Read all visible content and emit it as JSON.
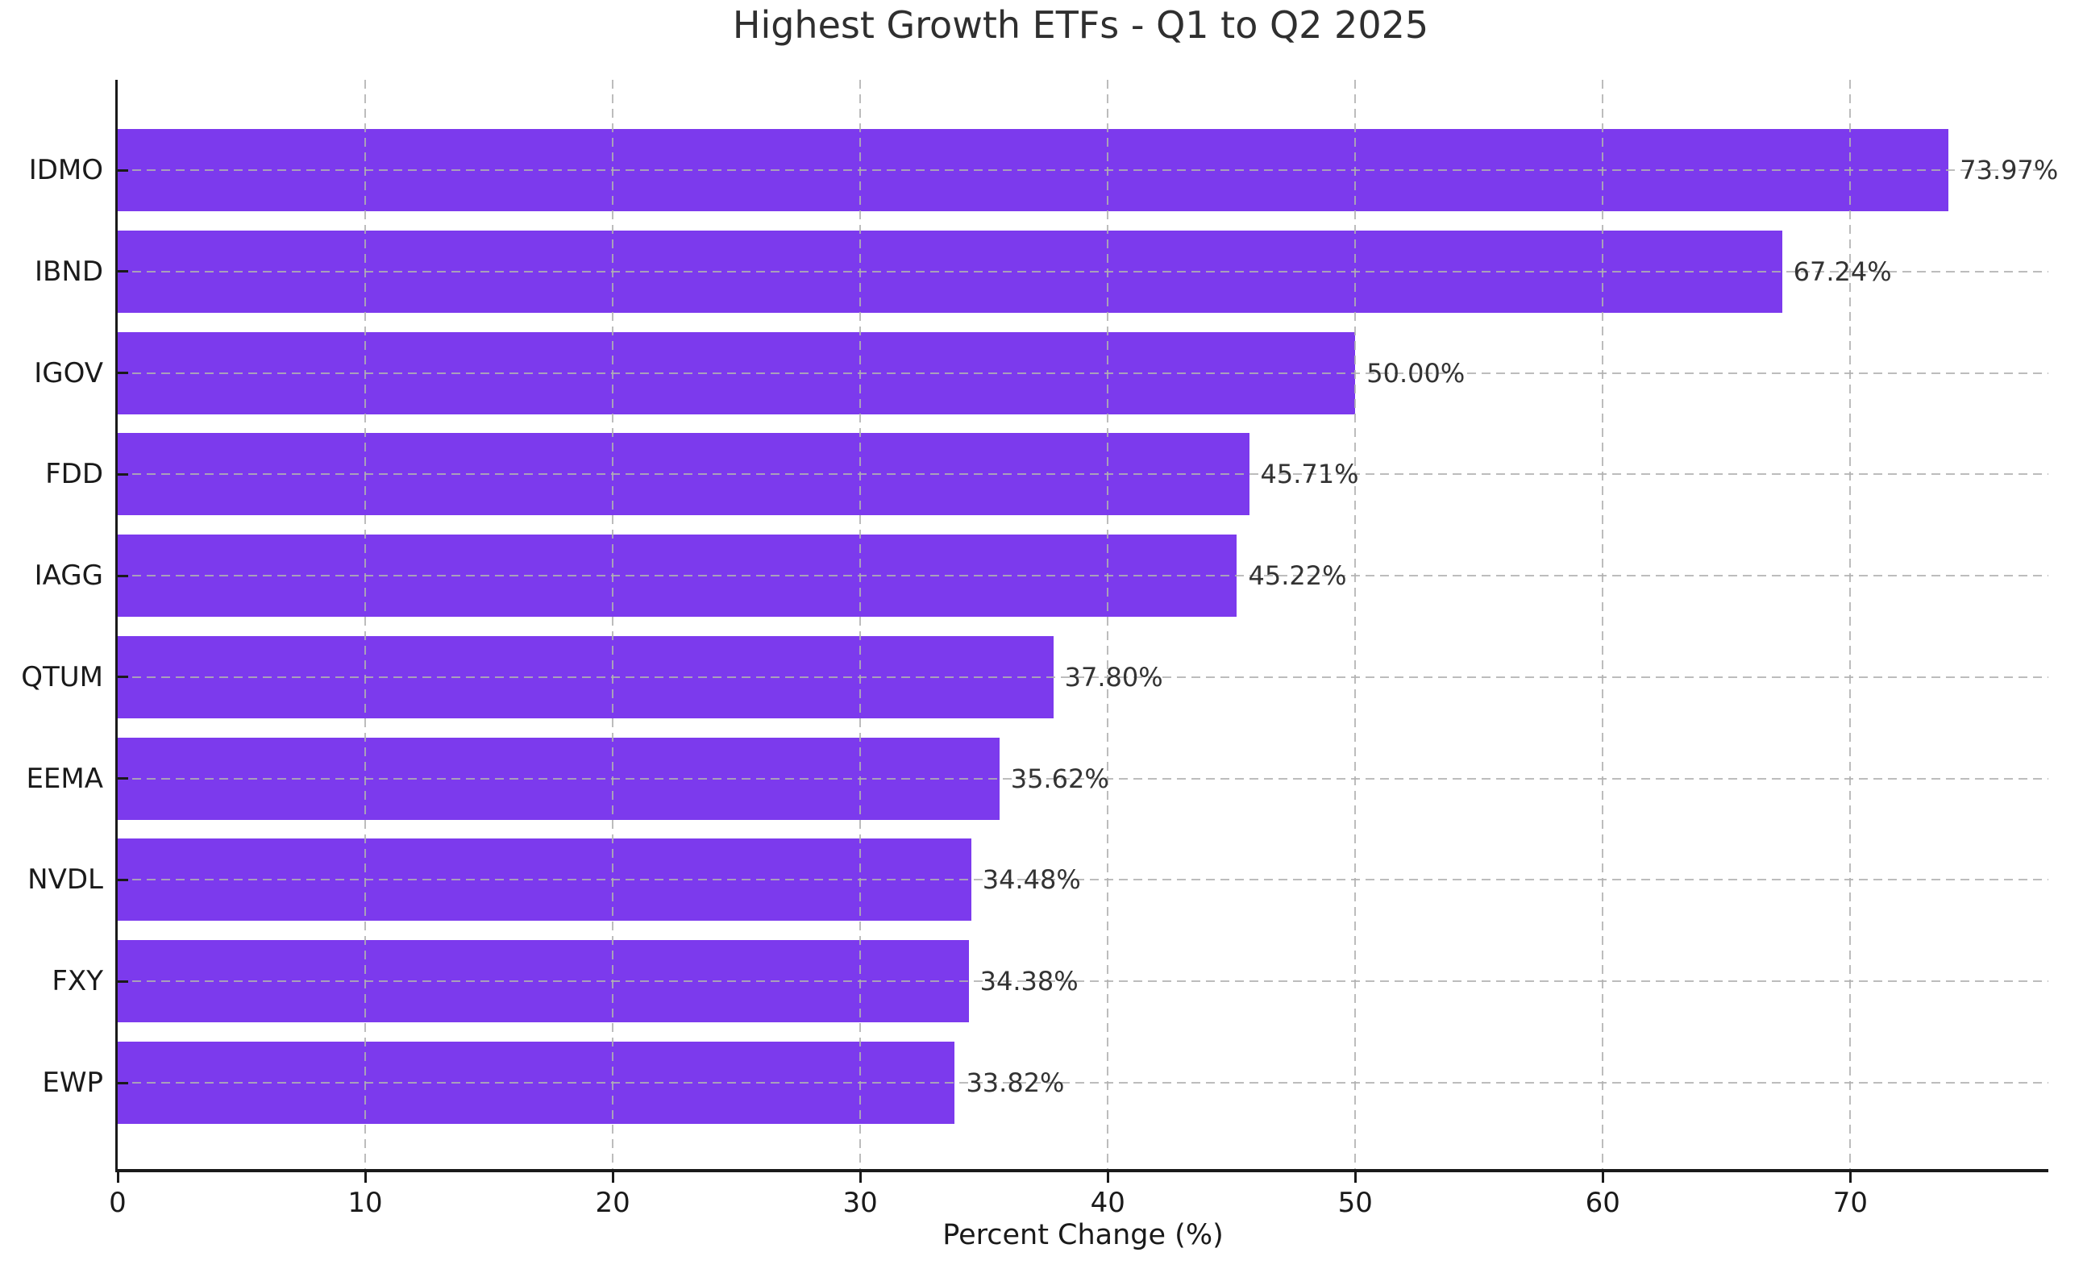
{
  "chart_data": {
    "type": "bar",
    "orientation": "horizontal",
    "title": "Highest Growth ETFs - Q1 to Q2 2025",
    "categories": [
      "IDMO",
      "IBND",
      "IGOV",
      "FDD",
      "IAGG",
      "QTUM",
      "EEMA",
      "NVDL",
      "FXY",
      "EWP"
    ],
    "values": [
      73.97,
      67.24,
      50.0,
      45.71,
      45.22,
      37.8,
      35.62,
      34.48,
      34.38,
      33.82
    ],
    "value_labels": [
      "73.97%",
      "67.24%",
      "50.00%",
      "45.71%",
      "45.22%",
      "37.80%",
      "35.62%",
      "34.48%",
      "34.38%",
      "33.82%"
    ],
    "xlabel": "Percent Change (%)",
    "x_ticks": [
      0,
      10,
      20,
      30,
      40,
      50,
      60,
      70
    ],
    "xlim": [
      0,
      78
    ],
    "grid": "dashed, drawn over bars, vertical at each x tick and horizontal at each bar center",
    "legend_position": "none",
    "bar_color": "#7C3AED",
    "grid_color": "#B1B1B1",
    "axis_color": "#1a1a1a",
    "title_color": "#2f2f2f",
    "value_label_color": "#333333"
  }
}
